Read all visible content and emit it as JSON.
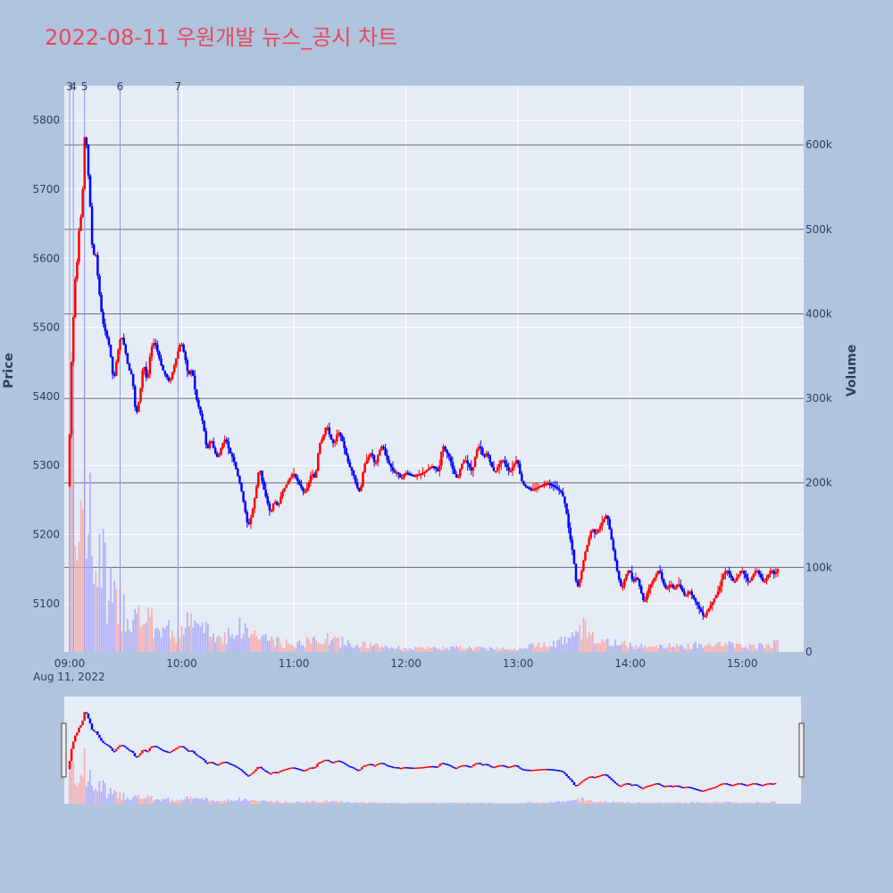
{
  "title": "2022-08-11 우원개발 뉴스_공시 차트",
  "colors": {
    "up": "#ff0000",
    "down": "#0000ff",
    "up_volume": "#f4a6a6",
    "down_volume": "#a6a6f4",
    "plot_bg": "#e5ecf6",
    "paper_bg": "#b0c4de",
    "title": "#e8485c",
    "marker_line": "#8f96e8",
    "volume_grid": "#6b6b7b"
  },
  "chart_data": {
    "type": "candlestick",
    "x_axis": {
      "ticks": [
        "09:00",
        "10:00",
        "11:00",
        "12:00",
        "13:00",
        "14:00",
        "15:00"
      ],
      "date_label": "Aug 11, 2022",
      "range": [
        "09:00",
        "15:30"
      ]
    },
    "y_axis_price": {
      "label": "Price",
      "ticks": [
        5100,
        5200,
        5300,
        5400,
        5500,
        5600,
        5700,
        5800
      ],
      "range": [
        5030,
        5850
      ]
    },
    "y_axis_volume": {
      "label": "Volume",
      "ticks": [
        "0",
        "100k",
        "200k",
        "300k",
        "400k",
        "500k",
        "600k"
      ],
      "tick_values": [
        0,
        100000,
        200000,
        300000,
        400000,
        500000,
        600000
      ],
      "range": [
        0,
        670000
      ]
    },
    "price_path": [
      [
        "09:00",
        5270
      ],
      [
        "09:01",
        5420
      ],
      [
        "09:02",
        5480
      ],
      [
        "09:03",
        5550
      ],
      [
        "09:04",
        5590
      ],
      [
        "09:05",
        5600
      ],
      [
        "09:06",
        5680
      ],
      [
        "09:07",
        5640
      ],
      [
        "09:08",
        5760
      ],
      [
        "09:09",
        5790
      ],
      [
        "09:10",
        5740
      ],
      [
        "09:11",
        5700
      ],
      [
        "09:12",
        5650
      ],
      [
        "09:13",
        5590
      ],
      [
        "09:14",
        5620
      ],
      [
        "09:16",
        5560
      ],
      [
        "09:18",
        5510
      ],
      [
        "09:20",
        5490
      ],
      [
        "09:22",
        5470
      ],
      [
        "09:24",
        5420
      ],
      [
        "09:26",
        5460
      ],
      [
        "09:28",
        5490
      ],
      [
        "09:30",
        5470
      ],
      [
        "09:32",
        5440
      ],
      [
        "09:34",
        5430
      ],
      [
        "09:36",
        5370
      ],
      [
        "09:38",
        5400
      ],
      [
        "09:40",
        5450
      ],
      [
        "09:42",
        5420
      ],
      [
        "09:44",
        5470
      ],
      [
        "09:46",
        5480
      ],
      [
        "09:48",
        5460
      ],
      [
        "09:50",
        5440
      ],
      [
        "09:52",
        5430
      ],
      [
        "09:54",
        5420
      ],
      [
        "09:56",
        5440
      ],
      [
        "09:58",
        5460
      ],
      [
        "10:00",
        5480
      ],
      [
        "10:02",
        5460
      ],
      [
        "10:04",
        5430
      ],
      [
        "10:06",
        5440
      ],
      [
        "10:08",
        5400
      ],
      [
        "10:10",
        5380
      ],
      [
        "10:12",
        5360
      ],
      [
        "10:14",
        5320
      ],
      [
        "10:16",
        5340
      ],
      [
        "10:18",
        5320
      ],
      [
        "10:20",
        5310
      ],
      [
        "10:22",
        5330
      ],
      [
        "10:24",
        5340
      ],
      [
        "10:26",
        5320
      ],
      [
        "10:28",
        5310
      ],
      [
        "10:30",
        5290
      ],
      [
        "10:32",
        5270
      ],
      [
        "10:34",
        5240
      ],
      [
        "10:36",
        5210
      ],
      [
        "10:38",
        5230
      ],
      [
        "10:40",
        5260
      ],
      [
        "10:42",
        5300
      ],
      [
        "10:44",
        5270
      ],
      [
        "10:46",
        5250
      ],
      [
        "10:48",
        5230
      ],
      [
        "10:50",
        5250
      ],
      [
        "10:52",
        5240
      ],
      [
        "10:54",
        5260
      ],
      [
        "10:56",
        5270
      ],
      [
        "10:58",
        5280
      ],
      [
        "11:00",
        5290
      ],
      [
        "11:02",
        5280
      ],
      [
        "11:04",
        5270
      ],
      [
        "11:06",
        5260
      ],
      [
        "11:08",
        5270
      ],
      [
        "11:10",
        5290
      ],
      [
        "11:12",
        5280
      ],
      [
        "11:14",
        5330
      ],
      [
        "11:16",
        5340
      ],
      [
        "11:18",
        5360
      ],
      [
        "11:20",
        5340
      ],
      [
        "11:22",
        5330
      ],
      [
        "11:24",
        5350
      ],
      [
        "11:26",
        5340
      ],
      [
        "11:28",
        5320
      ],
      [
        "11:30",
        5300
      ],
      [
        "11:32",
        5290
      ],
      [
        "11:34",
        5270
      ],
      [
        "11:36",
        5260
      ],
      [
        "11:38",
        5300
      ],
      [
        "11:40",
        5310
      ],
      [
        "11:42",
        5320
      ],
      [
        "11:44",
        5300
      ],
      [
        "11:46",
        5320
      ],
      [
        "11:48",
        5330
      ],
      [
        "11:50",
        5310
      ],
      [
        "11:52",
        5300
      ],
      [
        "11:54",
        5290
      ],
      [
        "11:56",
        5290
      ],
      [
        "11:58",
        5280
      ],
      [
        "12:00",
        5290
      ],
      [
        "12:05",
        5285
      ],
      [
        "12:10",
        5290
      ],
      [
        "12:15",
        5300
      ],
      [
        "12:18",
        5290
      ],
      [
        "12:20",
        5330
      ],
      [
        "12:22",
        5320
      ],
      [
        "12:24",
        5310
      ],
      [
        "12:26",
        5290
      ],
      [
        "12:28",
        5280
      ],
      [
        "12:30",
        5300
      ],
      [
        "12:32",
        5310
      ],
      [
        "12:34",
        5300
      ],
      [
        "12:36",
        5290
      ],
      [
        "12:38",
        5320
      ],
      [
        "12:40",
        5330
      ],
      [
        "12:42",
        5310
      ],
      [
        "12:44",
        5320
      ],
      [
        "12:46",
        5300
      ],
      [
        "12:48",
        5290
      ],
      [
        "12:50",
        5300
      ],
      [
        "12:52",
        5310
      ],
      [
        "12:54",
        5300
      ],
      [
        "12:56",
        5290
      ],
      [
        "12:58",
        5300
      ],
      [
        "13:00",
        5310
      ],
      [
        "13:02",
        5280
      ],
      [
        "13:04",
        5270
      ],
      [
        "13:08",
        5265
      ],
      [
        "13:12",
        5270
      ],
      [
        "13:16",
        5275
      ],
      [
        "13:20",
        5270
      ],
      [
        "13:24",
        5260
      ],
      [
        "13:26",
        5240
      ],
      [
        "13:28",
        5200
      ],
      [
        "13:30",
        5170
      ],
      [
        "13:32",
        5120
      ],
      [
        "13:34",
        5140
      ],
      [
        "13:36",
        5170
      ],
      [
        "13:38",
        5190
      ],
      [
        "13:40",
        5210
      ],
      [
        "13:42",
        5200
      ],
      [
        "13:44",
        5210
      ],
      [
        "13:46",
        5220
      ],
      [
        "13:48",
        5230
      ],
      [
        "13:50",
        5200
      ],
      [
        "13:52",
        5170
      ],
      [
        "13:54",
        5140
      ],
      [
        "13:56",
        5120
      ],
      [
        "13:58",
        5140
      ],
      [
        "14:00",
        5150
      ],
      [
        "14:02",
        5130
      ],
      [
        "14:04",
        5140
      ],
      [
        "14:06",
        5120
      ],
      [
        "14:08",
        5100
      ],
      [
        "14:10",
        5120
      ],
      [
        "14:12",
        5130
      ],
      [
        "14:14",
        5140
      ],
      [
        "14:16",
        5150
      ],
      [
        "14:18",
        5130
      ],
      [
        "14:20",
        5120
      ],
      [
        "14:22",
        5130
      ],
      [
        "14:24",
        5120
      ],
      [
        "14:26",
        5130
      ],
      [
        "14:28",
        5120
      ],
      [
        "14:30",
        5110
      ],
      [
        "14:32",
        5120
      ],
      [
        "14:34",
        5110
      ],
      [
        "14:36",
        5100
      ],
      [
        "14:38",
        5090
      ],
      [
        "14:40",
        5080
      ],
      [
        "14:42",
        5090
      ],
      [
        "14:44",
        5100
      ],
      [
        "14:46",
        5110
      ],
      [
        "14:48",
        5120
      ],
      [
        "14:50",
        5140
      ],
      [
        "14:52",
        5150
      ],
      [
        "14:54",
        5140
      ],
      [
        "14:56",
        5130
      ],
      [
        "14:58",
        5140
      ],
      [
        "15:00",
        5150
      ],
      [
        "15:02",
        5140
      ],
      [
        "15:04",
        5130
      ],
      [
        "15:06",
        5140
      ],
      [
        "15:08",
        5150
      ],
      [
        "15:10",
        5140
      ],
      [
        "15:12",
        5130
      ],
      [
        "15:14",
        5140
      ],
      [
        "15:16",
        5150
      ],
      [
        "15:18",
        5140
      ],
      [
        "15:19",
        5150
      ]
    ],
    "volume_profile": [
      [
        "09:00",
        240000
      ],
      [
        "09:01",
        440000
      ],
      [
        "09:02",
        370000
      ],
      [
        "09:03",
        300000
      ],
      [
        "09:04",
        220000
      ],
      [
        "09:05",
        330000
      ],
      [
        "09:06",
        240000
      ],
      [
        "09:07",
        200000
      ],
      [
        "09:08",
        280000
      ],
      [
        "09:09",
        170000
      ],
      [
        "09:10",
        210000
      ],
      [
        "09:12",
        160000
      ],
      [
        "09:15",
        120000
      ],
      [
        "09:18",
        140000
      ],
      [
        "09:20",
        90000
      ],
      [
        "09:25",
        70000
      ],
      [
        "09:30",
        60000
      ],
      [
        "09:35",
        50000
      ],
      [
        "09:40",
        45000
      ],
      [
        "09:45",
        40000
      ],
      [
        "09:50",
        35000
      ],
      [
        "09:55",
        30000
      ],
      [
        "10:00",
        30000
      ],
      [
        "10:05",
        45000
      ],
      [
        "10:10",
        35000
      ],
      [
        "10:20",
        20000
      ],
      [
        "10:30",
        35000
      ],
      [
        "10:40",
        25000
      ],
      [
        "10:50",
        15000
      ],
      [
        "11:00",
        10000
      ],
      [
        "11:15",
        20000
      ],
      [
        "11:30",
        12000
      ],
      [
        "11:45",
        8000
      ],
      [
        "12:00",
        5000
      ],
      [
        "12:30",
        6000
      ],
      [
        "13:00",
        5000
      ],
      [
        "13:30",
        20000
      ],
      [
        "13:35",
        35000
      ],
      [
        "13:45",
        15000
      ],
      [
        "14:00",
        10000
      ],
      [
        "14:30",
        8000
      ],
      [
        "14:45",
        15000
      ],
      [
        "15:00",
        8000
      ],
      [
        "15:20",
        12000
      ]
    ],
    "event_markers": [
      {
        "label": "3",
        "time": "09:00"
      },
      {
        "label": "4",
        "time": "09:02"
      },
      {
        "label": "5",
        "time": "09:08"
      },
      {
        "label": "6",
        "time": "09:27"
      },
      {
        "label": "7",
        "time": "09:58"
      }
    ],
    "grid": true,
    "range_slider": true
  }
}
